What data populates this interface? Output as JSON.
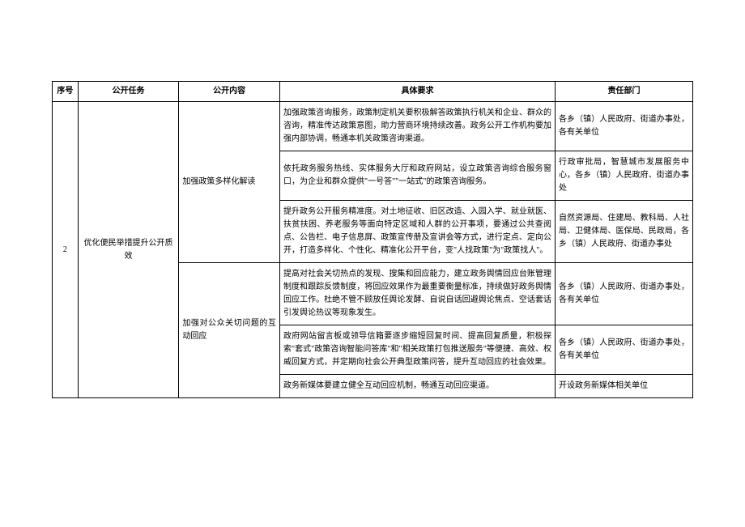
{
  "table": {
    "headers": {
      "seq": "序号",
      "task": "公开任务",
      "content": "公开内容",
      "requirement": "具体要求",
      "department": "责任部门"
    },
    "seq_value": "2",
    "task_value": "优化便民举措提升公开质效",
    "groups": [
      {
        "content": "加强政策多样化解读",
        "rows": [
          {
            "requirement": "加强政策咨询服务，政策制定机关要积极解答政策执行机关和企业、群众的咨询，精准传达政策意图，助力营商环境持续改善。政务公开工作机构要加强内部协调，畅通本机关政策咨询渠道。",
            "department": "各乡（镇）人民政府、街道办事处，各有关单位"
          },
          {
            "requirement": "依托政务服务热线、实体服务大厅和政府网站，设立政策咨询综合服务窗口，为企业和群众提供\"一号答\"\"一站式\"的政策咨询服务。",
            "department": "行政审批局，智慧城市发展服务中心，各乡（镇）人民政府、街道办事处"
          },
          {
            "requirement": "提升政务公开服务精准度。对土地征收、旧区改造、入园入学、就业就医、扶贫扶困、养老服务等面向特定区域和人群的公开事项，要通过公共查阅点、公告栏、电子信息屏、政策宣传册及宣讲会等方式，进行定点、定向公开，打造多样化、个性化、精准化公开平台，变\"人找政策\"为\"政策找人\"。",
            "department": "自然资源局、住建局、教科局、人社局、卫健体局、医保局、民政局，各乡（镇）人民政府、街道办事处"
          }
        ]
      },
      {
        "content": "加强对公众关切问题的互动回应",
        "rows": [
          {
            "requirement": "提高对社会关切热点的发现、搜集和回应能力，建立政务舆情回应台账管理制度和跟踪反馈制度，将回应效果作为最重要衡量标准，持续做好政务舆情回应工作。杜绝不管不顾放任舆论发酵、自说自话回避舆论焦点、空话套话引发舆论热议等现象发生。",
            "department": "各乡（镇）人民政府、街道办事处，各有关单位"
          },
          {
            "requirement": "政府网站留言板或领导信箱要逐步缩短回复时间、提高回复质量，积极探索\"套式\"政策咨询智能问答库\"和\"相关政策打包推送服务\"等便捷、高效、权威回复方式，并定期向社会公开典型政策问答，提升互动回应的社会效果。",
            "department": "各乡（镇）人民政府、街道办事处，各有关单位"
          },
          {
            "requirement": "政务新媒体要建立健全互动回应机制，畅通互动回应渠道。",
            "department": "开设政务新媒体相关单位"
          }
        ]
      }
    ]
  }
}
